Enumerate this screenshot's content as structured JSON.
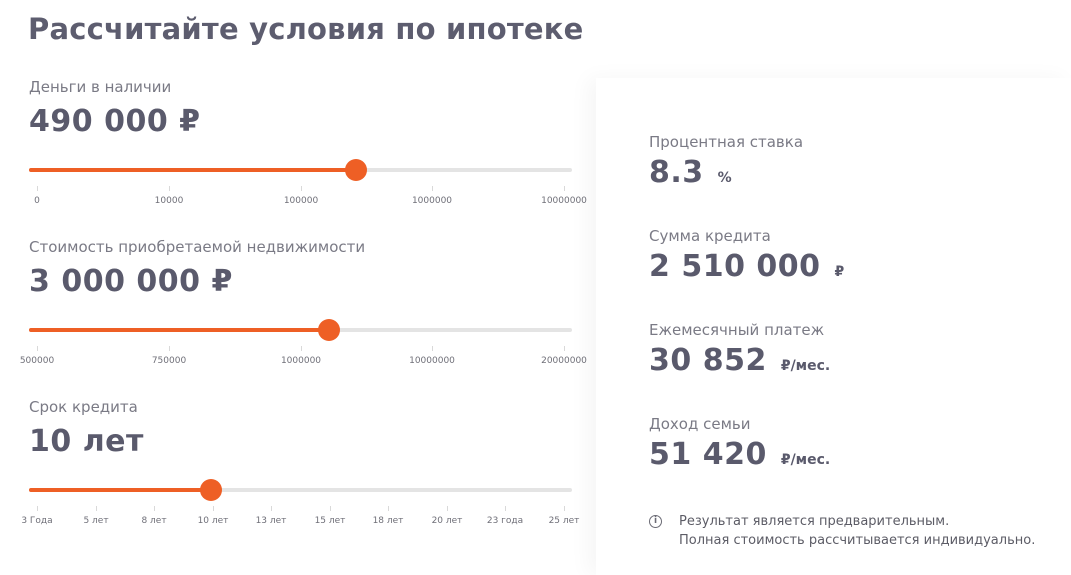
{
  "title": "Рассчитайте условия по ипотеке",
  "calculator": {
    "cash": {
      "label": "Деньги в наличии",
      "value": "490 000 ₽",
      "slider_fraction": 0.602,
      "ticks": [
        "0",
        "10000",
        "100000",
        "1000000",
        "10000000"
      ]
    },
    "property": {
      "label": "Стоимость приобретаемой недвижимости",
      "value": "3 000 000 ₽",
      "slider_fraction": 0.553,
      "ticks": [
        "500000",
        "750000",
        "1000000",
        "10000000",
        "20000000"
      ]
    },
    "term": {
      "label": "Срок кредита",
      "value": "10 лет",
      "slider_fraction": 0.336,
      "ticks": [
        "3 Года",
        "5 лет",
        "8 лет",
        "10 лет",
        "13 лет",
        "15 лет",
        "18 лет",
        "20 лет",
        "23 года",
        "25 лет"
      ]
    }
  },
  "results": {
    "rate": {
      "label": "Процентная ставка",
      "value": "8.3",
      "unit": "%"
    },
    "loan": {
      "label": "Сумма кредита",
      "value": "2 510 000",
      "unit": "₽"
    },
    "payment": {
      "label": "Ежемесячный платеж",
      "value": "30 852",
      "unit": "₽/мес."
    },
    "income": {
      "label": "Доход семьи",
      "value": "51 420",
      "unit": "₽/мес."
    }
  },
  "note": {
    "icon": "info-icon",
    "line1": "Результат является предварительным.",
    "line2": "Полная стоимость рассчитывается индивидуально."
  },
  "colors": {
    "accent": "#ee5f25",
    "text": "#5a5a6c",
    "track": "#e4e4e4"
  }
}
